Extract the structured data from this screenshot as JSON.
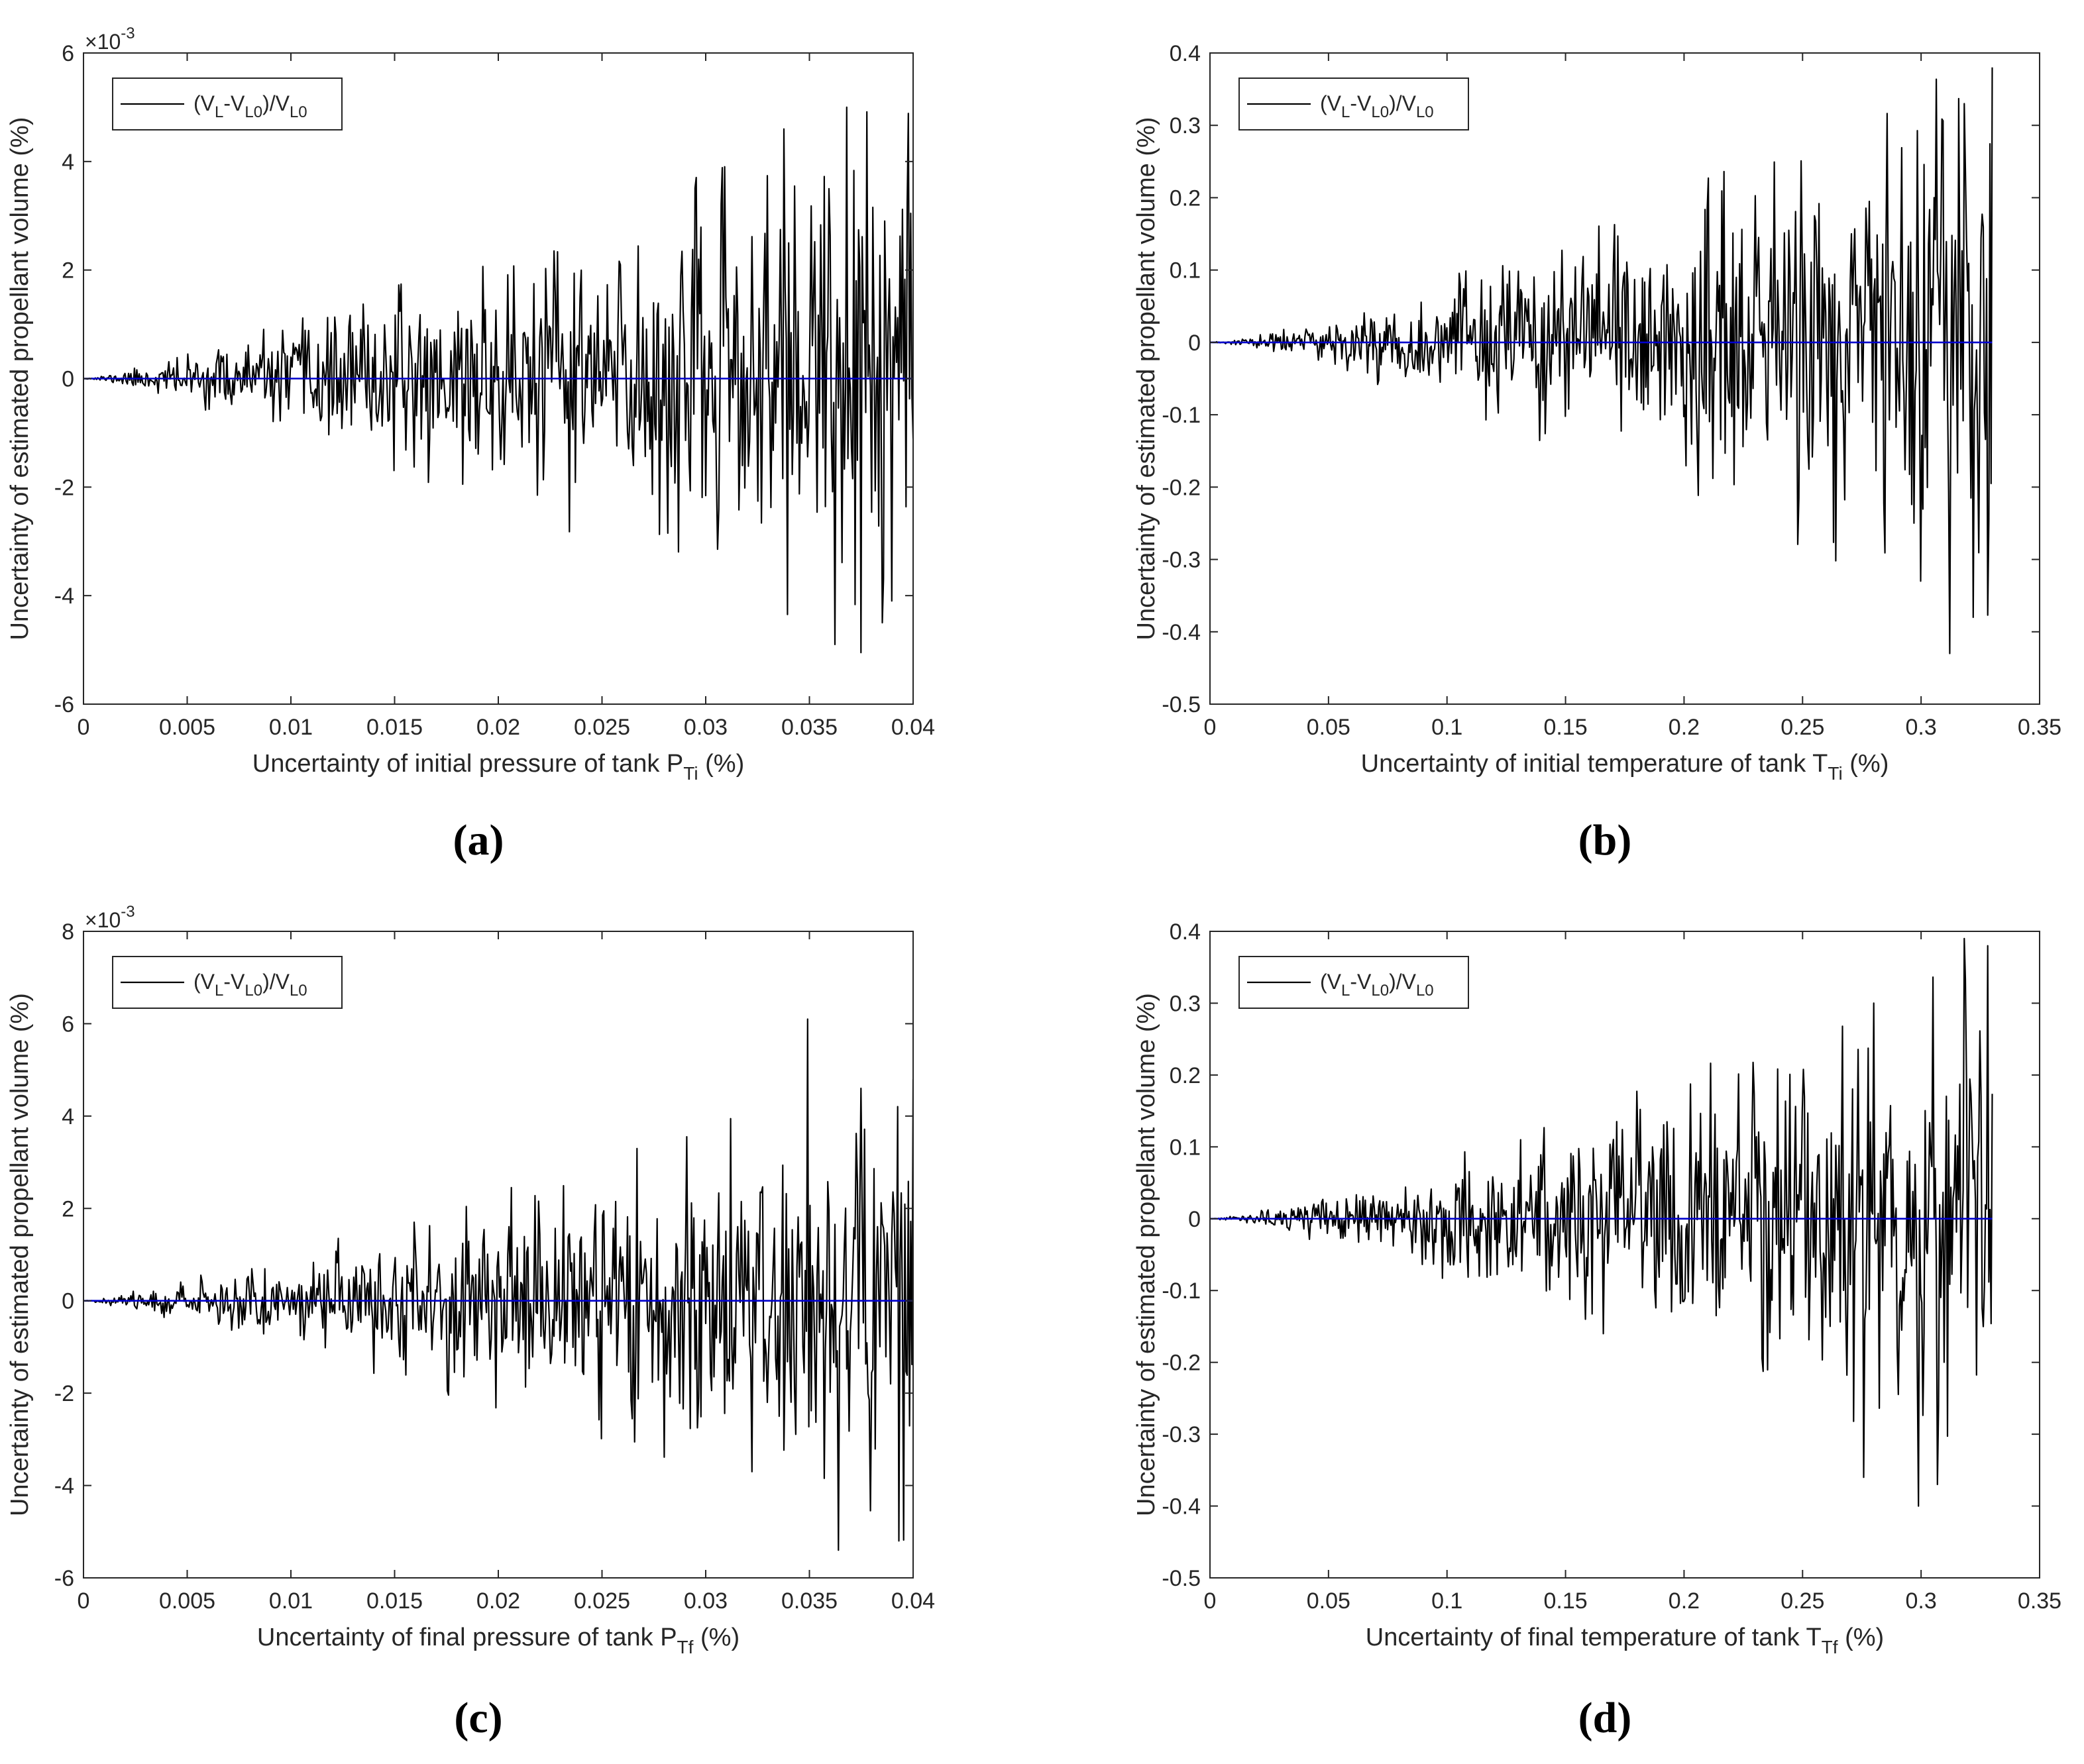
{
  "figure": {
    "colors": {
      "signal": "#000000",
      "reference": "#0000CD",
      "axis": "#262626",
      "background": "#ffffff"
    }
  },
  "chart_data": [
    {
      "id": "a",
      "panel_label": "(a)",
      "type": "line",
      "title": "",
      "xlabel": {
        "main": "Uncertainty of initial pressure of tank P",
        "sub": "Ti",
        "tail": " (%)"
      },
      "ylabel": "Uncertainty of estimated propellant volume  (%)",
      "xlim": [
        0,
        0.04
      ],
      "ylim": [
        -6,
        6
      ],
      "exponent_label": {
        "base": "×10",
        "power": "-3"
      },
      "xticks": [
        0,
        0.005,
        0.01,
        0.015,
        0.02,
        0.025,
        0.03,
        0.035,
        0.04
      ],
      "xtick_labels": [
        "0",
        "0.005",
        "0.01",
        "0.015",
        "0.02",
        "0.025",
        "0.03",
        "0.035",
        "0.04"
      ],
      "yticks": [
        -6,
        -4,
        -2,
        0,
        2,
        4,
        6
      ],
      "ytick_labels": [
        "-6",
        "-4",
        "-2",
        "0",
        "2",
        "4",
        "6"
      ],
      "legend": {
        "position": "top-left",
        "label_parts": [
          "(V",
          "L",
          "-V",
          "L0",
          ")/V",
          "L0"
        ]
      },
      "grid": false,
      "series": [
        {
          "name": "(VL-VL0)/VL0",
          "color": "#000000",
          "style": "noise",
          "x_range": [
            0,
            0.04
          ],
          "envelope": {
            "start": 0.0,
            "end": 5.0,
            "power": 1.15
          },
          "samples": 700,
          "seed": 11,
          "annotated_extrema": [
            {
              "x": 0.0338,
              "y": 4.6
            },
            {
              "x": 0.0368,
              "y": 5.0
            },
            {
              "x": 0.0375,
              "y": 4.7
            },
            {
              "x": 0.0362,
              "y": -4.9
            },
            {
              "x": 0.0375,
              "y": -5.05
            },
            {
              "x": 0.0385,
              "y": -4.5
            }
          ]
        },
        {
          "name": "zero reference",
          "color": "#0000CD",
          "style": "constant",
          "x": [
            0,
            0.04
          ],
          "y": [
            0,
            0
          ]
        }
      ]
    },
    {
      "id": "b",
      "panel_label": "(b)",
      "type": "line",
      "title": "",
      "xlabel": {
        "main": "Uncertainty of initial temperature of tank T",
        "sub": "Ti",
        "tail": " (%)"
      },
      "ylabel": "Uncertainty of estimated propellant volume  (%)",
      "xlim": [
        0,
        0.35
      ],
      "ylim": [
        -0.5,
        0.4
      ],
      "exponent_label": null,
      "xticks": [
        0,
        0.05,
        0.1,
        0.15,
        0.2,
        0.25,
        0.3,
        0.35
      ],
      "xtick_labels": [
        "0",
        "0.05",
        "0.1",
        "0.15",
        "0.2",
        "0.25",
        "0.3",
        "0.35"
      ],
      "yticks": [
        -0.5,
        -0.4,
        -0.3,
        -0.2,
        -0.1,
        0,
        0.1,
        0.2,
        0.3,
        0.4
      ],
      "ytick_labels": [
        "-0.5",
        "-0.4",
        "-0.3",
        "-0.2",
        "-0.1",
        "0",
        "0.1",
        "0.2",
        "0.3",
        "0.4"
      ],
      "legend": {
        "position": "top-left",
        "label_parts": [
          "(V",
          "L",
          "-V",
          "L0",
          ")/V",
          "L0"
        ]
      },
      "grid": false,
      "series": [
        {
          "name": "(VL-VL0)/VL0",
          "color": "#000000",
          "style": "noise",
          "x_range": [
            0,
            0.33
          ],
          "envelope": {
            "start": 0.0,
            "end": 0.38,
            "power": 1.25
          },
          "samples": 700,
          "seed": 23,
          "annotated_extrema": [
            {
              "x": 0.318,
              "y": 0.33
            },
            {
              "x": 0.33,
              "y": 0.38
            },
            {
              "x": 0.3,
              "y": 0.27
            },
            {
              "x": 0.312,
              "y": -0.43
            },
            {
              "x": 0.3,
              "y": -0.33
            },
            {
              "x": 0.322,
              "y": -0.38
            }
          ]
        },
        {
          "name": "zero reference",
          "color": "#0000CD",
          "style": "constant",
          "x": [
            0,
            0.33
          ],
          "y": [
            0,
            0
          ]
        }
      ]
    },
    {
      "id": "c",
      "panel_label": "(c)",
      "type": "line",
      "title": "",
      "xlabel": {
        "main": "Uncertainty of final pressure of tank P",
        "sub": "Tf",
        "tail": " (%)"
      },
      "ylabel": "Uncertainty of estimated propellant volume  (%)",
      "xlim": [
        0,
        0.04
      ],
      "ylim": [
        -6,
        8
      ],
      "exponent_label": {
        "base": "×10",
        "power": "-3"
      },
      "xticks": [
        0,
        0.005,
        0.01,
        0.015,
        0.02,
        0.025,
        0.03,
        0.035,
        0.04
      ],
      "xtick_labels": [
        "0",
        "0.005",
        "0.01",
        "0.015",
        "0.02",
        "0.025",
        "0.03",
        "0.035",
        "0.04"
      ],
      "yticks": [
        -6,
        -4,
        -2,
        0,
        2,
        4,
        6,
        8
      ],
      "ytick_labels": [
        "-6",
        "-4",
        "-2",
        "0",
        "2",
        "4",
        "6",
        "8"
      ],
      "legend": {
        "position": "top-left",
        "label_parts": [
          "(V",
          "L",
          "-V",
          "L0",
          ")/V",
          "L0"
        ]
      },
      "grid": false,
      "series": [
        {
          "name": "(VL-VL0)/VL0",
          "color": "#000000",
          "style": "noise",
          "x_range": [
            0,
            0.04
          ],
          "envelope": {
            "start": 0.0,
            "end": 5.0,
            "power": 1.15
          },
          "samples": 700,
          "seed": 37,
          "annotated_extrema": [
            {
              "x": 0.0349,
              "y": 6.1
            },
            {
              "x": 0.0375,
              "y": 4.6
            },
            {
              "x": 0.04,
              "y": 4.8
            },
            {
              "x": 0.0364,
              "y": -5.4
            },
            {
              "x": 0.0393,
              "y": -5.2
            },
            {
              "x": 0.0322,
              "y": -3.7
            }
          ]
        },
        {
          "name": "zero reference",
          "color": "#0000CD",
          "style": "constant",
          "x": [
            0,
            0.04
          ],
          "y": [
            0,
            0
          ]
        }
      ]
    },
    {
      "id": "d",
      "panel_label": "(d)",
      "type": "line",
      "title": "",
      "xlabel": {
        "main": "Uncertainty of final temperature of tank T",
        "sub": "Tf",
        "tail": " (%)"
      },
      "ylabel": "Uncertainty of estimated propellant volume  (%)",
      "xlim": [
        0,
        0.35
      ],
      "ylim": [
        -0.5,
        0.4
      ],
      "exponent_label": null,
      "xticks": [
        0,
        0.05,
        0.1,
        0.15,
        0.2,
        0.25,
        0.3,
        0.35
      ],
      "xtick_labels": [
        "0",
        "0.05",
        "0.1",
        "0.15",
        "0.2",
        "0.25",
        "0.3",
        "0.35"
      ],
      "yticks": [
        -0.5,
        -0.4,
        -0.3,
        -0.2,
        -0.1,
        0,
        0.1,
        0.2,
        0.3,
        0.4
      ],
      "ytick_labels": [
        "-0.5",
        "-0.4",
        "-0.3",
        "-0.2",
        "-0.1",
        "0",
        "0.1",
        "0.2",
        "0.3",
        "0.4"
      ],
      "legend": {
        "position": "top-left",
        "label_parts": [
          "(V",
          "L",
          "-V",
          "L0",
          ")/V",
          "L0"
        ]
      },
      "grid": false,
      "series": [
        {
          "name": "(VL-VL0)/VL0",
          "color": "#000000",
          "style": "noise",
          "x_range": [
            0,
            0.33
          ],
          "envelope": {
            "start": 0.0,
            "end": 0.36,
            "power": 1.25
          },
          "samples": 700,
          "seed": 53,
          "annotated_extrema": [
            {
              "x": 0.318,
              "y": 0.39
            },
            {
              "x": 0.328,
              "y": 0.38
            },
            {
              "x": 0.28,
              "y": 0.3
            },
            {
              "x": 0.299,
              "y": -0.4
            },
            {
              "x": 0.276,
              "y": -0.36
            },
            {
              "x": 0.307,
              "y": -0.37
            }
          ]
        },
        {
          "name": "zero reference",
          "color": "#0000CD",
          "style": "constant",
          "x": [
            0,
            0.33
          ],
          "y": [
            0,
            0
          ]
        }
      ]
    }
  ]
}
